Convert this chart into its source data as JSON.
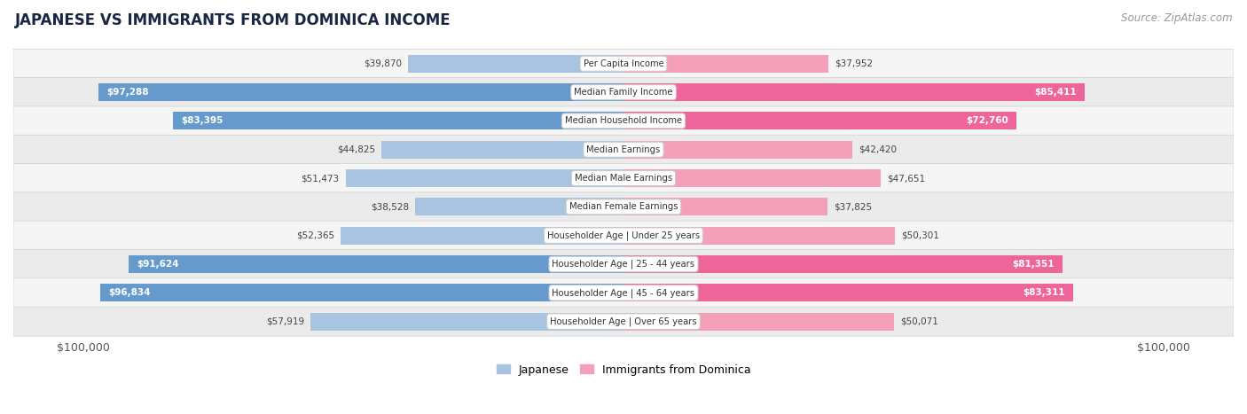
{
  "title": "JAPANESE VS IMMIGRANTS FROM DOMINICA INCOME",
  "source": "Source: ZipAtlas.com",
  "max_value": 100000,
  "categories": [
    "Per Capita Income",
    "Median Family Income",
    "Median Household Income",
    "Median Earnings",
    "Median Male Earnings",
    "Median Female Earnings",
    "Householder Age | Under 25 years",
    "Householder Age | 25 - 44 years",
    "Householder Age | 45 - 64 years",
    "Householder Age | Over 65 years"
  ],
  "japanese_values": [
    39870,
    97288,
    83395,
    44825,
    51473,
    38528,
    52365,
    91624,
    96834,
    57919
  ],
  "dominica_values": [
    37952,
    85411,
    72760,
    42420,
    47651,
    37825,
    50301,
    81351,
    83311,
    50071
  ],
  "japanese_color": "#a8c4e0",
  "dominica_color": "#f4a0b8",
  "japanese_color_strong": "#6699cc",
  "dominica_color_strong": "#ee6699",
  "bg_color": "#ffffff",
  "row_bg_light": "#f5f5f5",
  "row_bg_dark": "#ebebeb",
  "label_color_inside": "#ffffff",
  "label_color_outside": "#555555",
  "title_fontsize": 12,
  "source_fontsize": 8.5,
  "bar_height": 0.62,
  "inside_threshold": 68000,
  "legend_japanese": "Japanese",
  "legend_dominica": "Immigrants from Dominica"
}
